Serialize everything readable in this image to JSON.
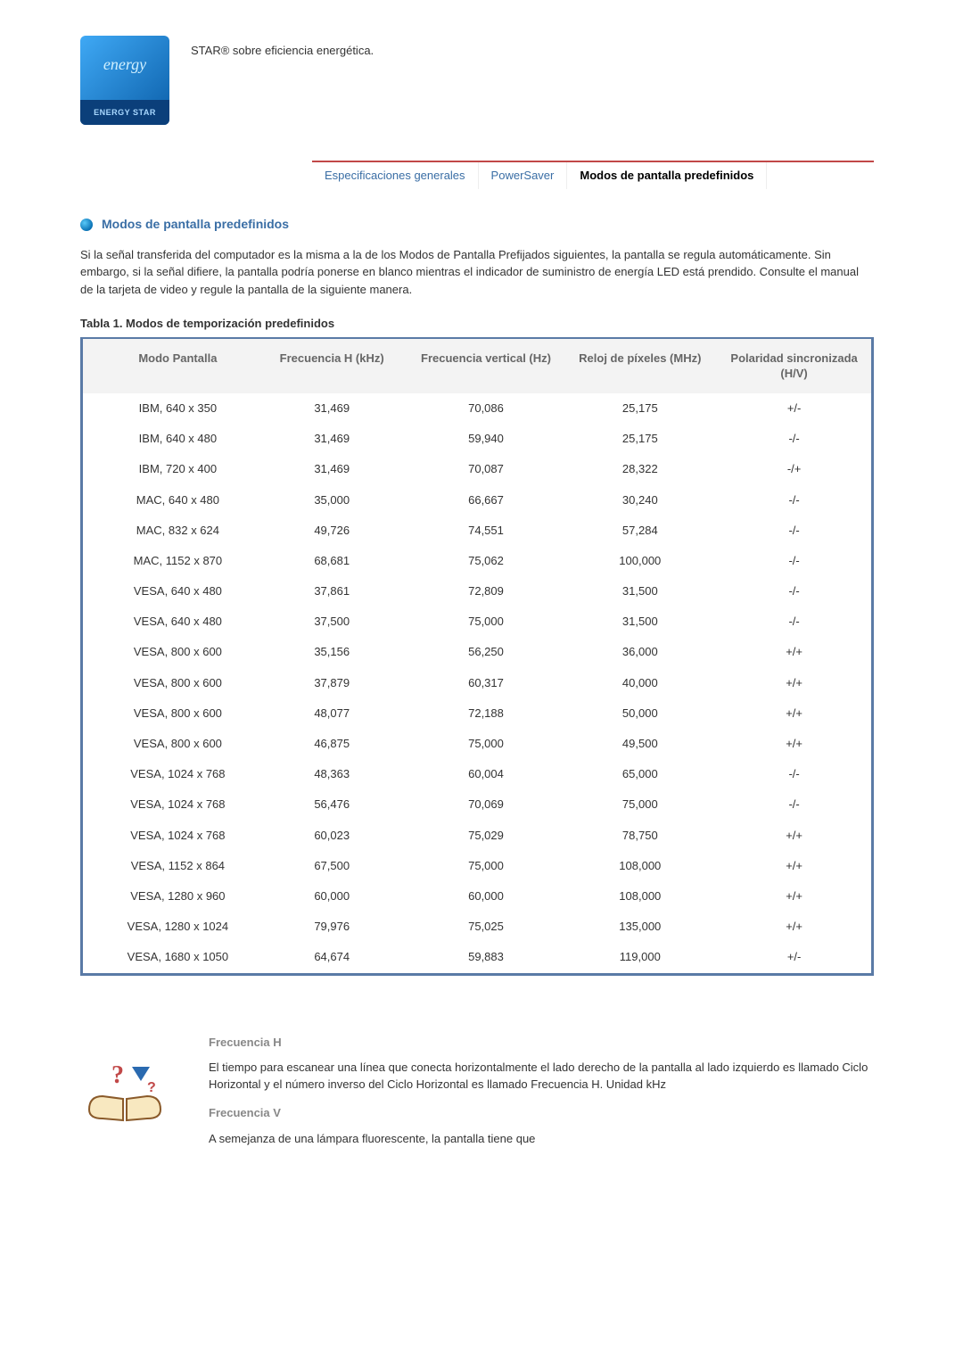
{
  "header_text": "STAR® sobre eficiencia energética.",
  "logo_label": "ENERGY STAR",
  "tabs": [
    {
      "label": "Especificaciones generales",
      "active": false
    },
    {
      "label": "PowerSaver",
      "active": false
    },
    {
      "label": "Modos de pantalla predefinidos",
      "active": true
    }
  ],
  "section_title": "Modos de pantalla predefinidos",
  "intro_text": "Si la señal transferida del computador es la misma a la de los Modos de Pantalla Prefijados siguientes, la pantalla se regula automáticamente. Sin embargo, si la señal difiere, la pantalla podría ponerse en blanco mientras el indicador de suministro de energía LED está prendido. Consulte el manual de la tarjeta de video y regule la pantalla de la siguiente manera.",
  "table_caption": "Tabla 1. Modos de temporización predefinidos",
  "table": {
    "columns": [
      "Modo Pantalla",
      "Frecuencia H (kHz)",
      "Frecuencia vertical (Hz)",
      "Reloj de píxeles (MHz)",
      "Polaridad sincronizada (H/V)"
    ],
    "rows": [
      [
        "IBM, 640 x 350",
        "31,469",
        "70,086",
        "25,175",
        "+/-"
      ],
      [
        "IBM, 640 x 480",
        "31,469",
        "59,940",
        "25,175",
        "-/-"
      ],
      [
        "IBM, 720 x 400",
        "31,469",
        "70,087",
        "28,322",
        "-/+"
      ],
      [
        "MAC, 640 x 480",
        "35,000",
        "66,667",
        "30,240",
        "-/-"
      ],
      [
        "MAC, 832 x 624",
        "49,726",
        "74,551",
        "57,284",
        "-/-"
      ],
      [
        "MAC, 1152 x 870",
        "68,681",
        "75,062",
        "100,000",
        "-/-"
      ],
      [
        "VESA, 640 x 480",
        "37,861",
        "72,809",
        "31,500",
        "-/-"
      ],
      [
        "VESA, 640 x 480",
        "37,500",
        "75,000",
        "31,500",
        "-/-"
      ],
      [
        "VESA, 800 x 600",
        "35,156",
        "56,250",
        "36,000",
        "+/+"
      ],
      [
        "VESA, 800 x 600",
        "37,879",
        "60,317",
        "40,000",
        "+/+"
      ],
      [
        "VESA, 800 x 600",
        "48,077",
        "72,188",
        "50,000",
        "+/+"
      ],
      [
        "VESA, 800 x 600",
        "46,875",
        "75,000",
        "49,500",
        "+/+"
      ],
      [
        "VESA, 1024 x 768",
        "48,363",
        "60,004",
        "65,000",
        "-/-"
      ],
      [
        "VESA, 1024 x 768",
        "56,476",
        "70,069",
        "75,000",
        "-/-"
      ],
      [
        "VESA, 1024 x 768",
        "60,023",
        "75,029",
        "78,750",
        "+/+"
      ],
      [
        "VESA, 1152 x 864",
        "67,500",
        "75,000",
        "108,000",
        "+/+"
      ],
      [
        "VESA, 1280 x 960",
        "60,000",
        "60,000",
        "108,000",
        "+/+"
      ],
      [
        "VESA, 1280 x 1024",
        "79,976",
        "75,025",
        "135,000",
        "+/+"
      ],
      [
        "VESA, 1680 x 1050",
        "64,674",
        "59,883",
        "119,000",
        "+/-"
      ]
    ],
    "header_bg": "#f3f3f3",
    "border_color": "#5a7aa6",
    "header_color": "#666666"
  },
  "definitions": [
    {
      "term": "Frecuencia H",
      "desc": "El tiempo para escanear una línea que conecta horizontalmente el lado derecho de la pantalla al lado izquierdo es llamado Ciclo Horizontal y el número inverso del Ciclo Horizontal es llamado Frecuencia H. Unidad kHz"
    },
    {
      "term": "Frecuencia V",
      "desc": "A semejanza de una lámpara fluorescente, la pantalla tiene que"
    }
  ],
  "colors": {
    "tab_border": "#c14848",
    "link": "#3a6ea5",
    "bullet_gradient_1": "#59c8f7",
    "bullet_gradient_2": "#0a72b5"
  }
}
